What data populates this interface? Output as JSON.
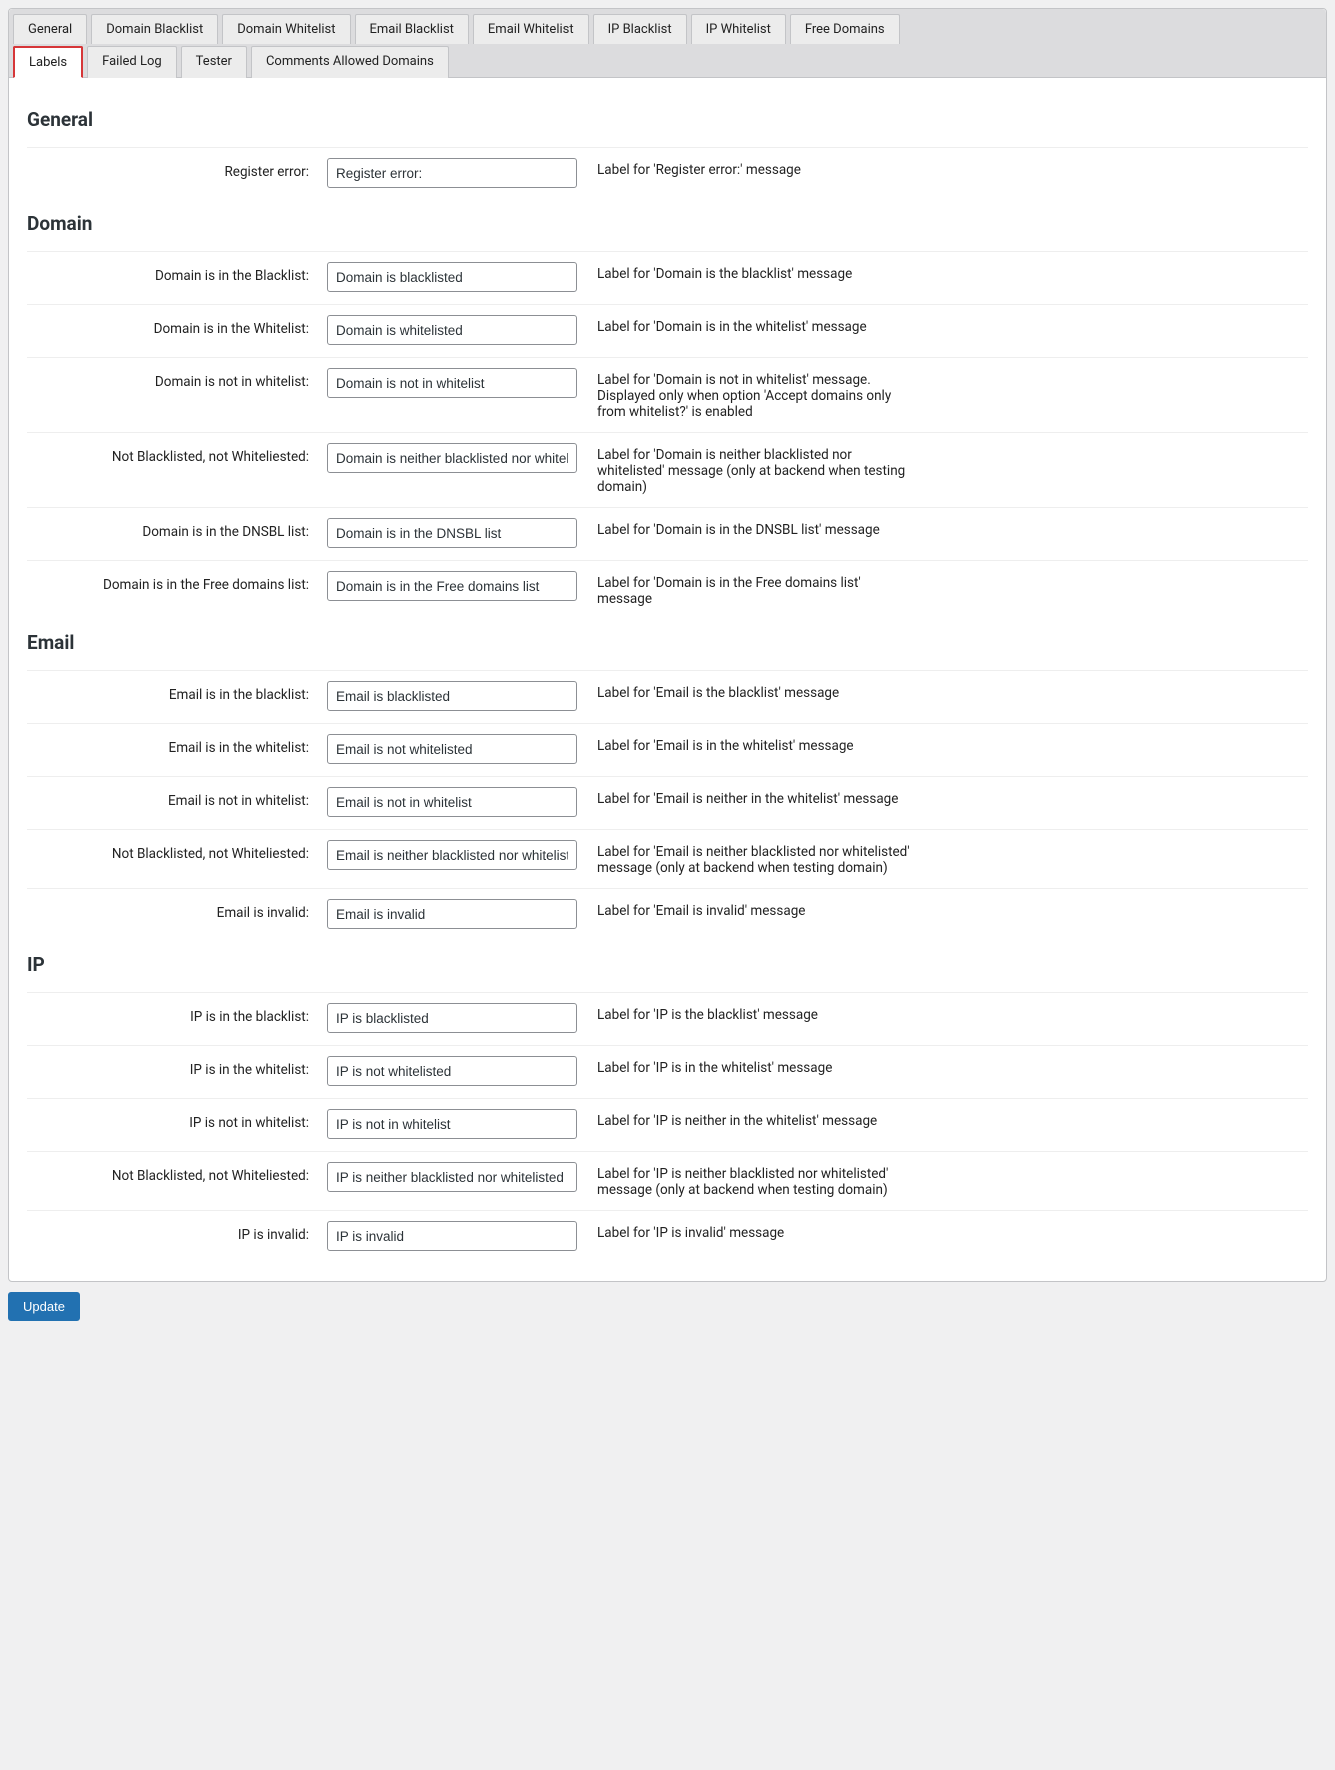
{
  "tabs": {
    "row1": [
      {
        "label": "General",
        "active": false
      },
      {
        "label": "Domain Blacklist",
        "active": false
      },
      {
        "label": "Domain Whitelist",
        "active": false
      },
      {
        "label": "Email Blacklist",
        "active": false
      },
      {
        "label": "Email Whitelist",
        "active": false
      },
      {
        "label": "IP Blacklist",
        "active": false
      },
      {
        "label": "IP Whitelist",
        "active": false
      },
      {
        "label": "Free Domains",
        "active": false
      }
    ],
    "row2": [
      {
        "label": "Labels",
        "active": true
      },
      {
        "label": "Failed Log",
        "active": false
      },
      {
        "label": "Tester",
        "active": false
      },
      {
        "label": "Comments Allowed Domains",
        "active": false
      }
    ]
  },
  "sections": [
    {
      "heading": "General",
      "fields": [
        {
          "label": "Register error:",
          "value": "Register error:",
          "desc": "Label for 'Register error:' message"
        }
      ]
    },
    {
      "heading": "Domain",
      "fields": [
        {
          "label": "Domain is in the Blacklist:",
          "value": "Domain is blacklisted",
          "desc": "Label for 'Domain is the blacklist' message"
        },
        {
          "label": "Domain is in the Whitelist:",
          "value": "Domain is whitelisted",
          "desc": "Label for 'Domain is in the whitelist' message"
        },
        {
          "label": "Domain is not in whitelist:",
          "value": "Domain is not in whitelist",
          "desc": "Label for 'Domain is not in whitelist' message. Displayed only when option 'Accept domains only from whitelist?' is enabled"
        },
        {
          "label": "Not Blacklisted, not Whiteliested:",
          "value": "Domain is neither blacklisted nor whitelisted",
          "desc": "Label for 'Domain is neither blacklisted nor whitelisted' message (only at backend when testing domain)"
        },
        {
          "label": "Domain is in the DNSBL list:",
          "value": "Domain is in the DNSBL list",
          "desc": "Label for 'Domain is in the DNSBL list' message"
        },
        {
          "label": "Domain is in the Free domains list:",
          "value": "Domain is in the Free domains list",
          "desc": "Label for 'Domain is in the Free domains list' message"
        }
      ]
    },
    {
      "heading": "Email",
      "fields": [
        {
          "label": "Email is in the blacklist:",
          "value": "Email is blacklisted",
          "desc": "Label for 'Email is the blacklist' message"
        },
        {
          "label": "Email is in the whitelist:",
          "value": "Email is not whitelisted",
          "desc": "Label for 'Email is in the whitelist' message"
        },
        {
          "label": "Email is not in whitelist:",
          "value": "Email is not in whitelist",
          "desc": "Label for 'Email is neither in the whitelist' message"
        },
        {
          "label": "Not Blacklisted, not Whiteliested:",
          "value": "Email is neither blacklisted nor whitelisted",
          "desc": "Label for 'Email is neither blacklisted nor whitelisted' message (only at backend when testing domain)"
        },
        {
          "label": "Email is invalid:",
          "value": "Email is invalid",
          "desc": "Label for 'Email is invalid' message"
        }
      ]
    },
    {
      "heading": "IP",
      "fields": [
        {
          "label": "IP is in the blacklist:",
          "value": "IP is blacklisted",
          "desc": "Label for 'IP is the blacklist' message"
        },
        {
          "label": "IP is in the whitelist:",
          "value": "IP is not whitelisted",
          "desc": "Label for 'IP is in the whitelist' message"
        },
        {
          "label": "IP is not in whitelist:",
          "value": "IP is not in whitelist",
          "desc": "Label for 'IP is neither in the whitelist' message"
        },
        {
          "label": "Not Blacklisted, not Whiteliested:",
          "value": "IP is neither blacklisted nor whitelisted",
          "desc": "Label for 'IP is neither blacklisted nor whitelisted' message (only at backend when testing domain)"
        },
        {
          "label": "IP is invalid:",
          "value": "IP is invalid",
          "desc": "Label for 'IP is invalid' message"
        }
      ]
    }
  ],
  "update_button": "Update"
}
